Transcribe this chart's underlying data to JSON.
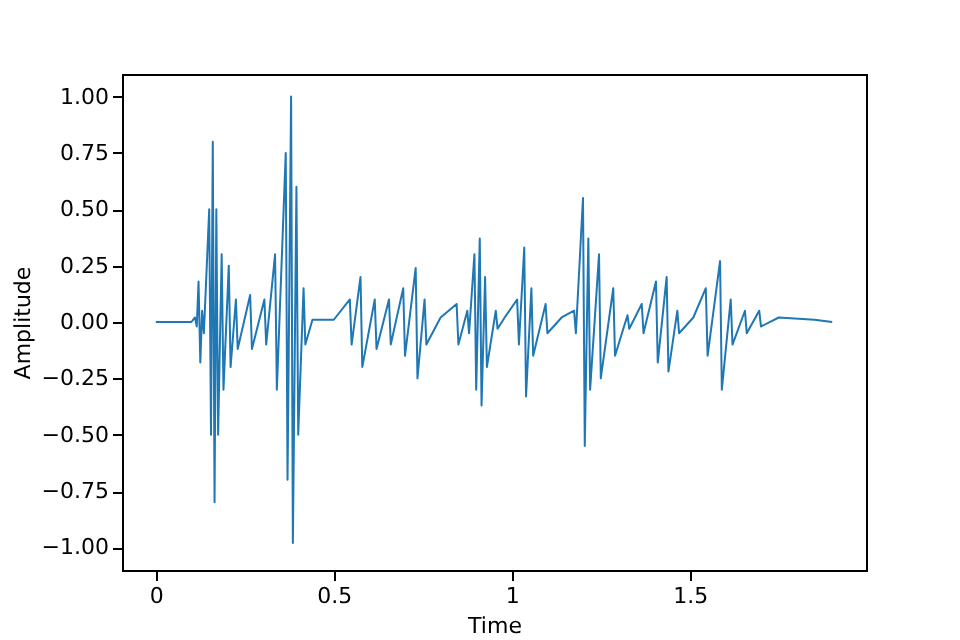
{
  "chart_data": {
    "type": "line",
    "xlabel": "Time",
    "ylabel": "Amplitude",
    "grid": false,
    "x": [
      0,
      0.1,
      0.11,
      0.115,
      0.12,
      0.125,
      0.13,
      0.135,
      0.15,
      0.155,
      0.16,
      0.165,
      0.17,
      0.175,
      0.185,
      0.19,
      0.205,
      0.21,
      0.225,
      0.23,
      0.265,
      0.27,
      0.305,
      0.31,
      0.335,
      0.34,
      0.365,
      0.37,
      0.38,
      0.385,
      0.395,
      0.4,
      0.415,
      0.42,
      0.44,
      0.5,
      0.545,
      0.55,
      0.575,
      0.58,
      0.615,
      0.62,
      0.655,
      0.66,
      0.695,
      0.7,
      0.73,
      0.735,
      0.755,
      0.76,
      0.8,
      0.845,
      0.85,
      0.875,
      0.88,
      0.895,
      0.9,
      0.91,
      0.915,
      0.925,
      0.93,
      0.955,
      0.96,
      0.98,
      1.015,
      1.02,
      1.035,
      1.04,
      1.055,
      1.06,
      1.095,
      1.1,
      1.14,
      1.175,
      1.18,
      1.2,
      1.205,
      1.215,
      1.22,
      1.245,
      1.25,
      1.285,
      1.29,
      1.325,
      1.33,
      1.365,
      1.37,
      1.405,
      1.41,
      1.435,
      1.44,
      1.465,
      1.47,
      1.51,
      1.545,
      1.55,
      1.585,
      1.59,
      1.615,
      1.62,
      1.655,
      1.66,
      1.695,
      1.7,
      1.75,
      1.85,
      1.9
    ],
    "series": [
      {
        "color": "#1f77b4",
        "values": [
          0,
          0,
          0.02,
          -0.02,
          0.18,
          -0.18,
          0.05,
          -0.05,
          0.5,
          -0.5,
          0.8,
          -0.8,
          0.5,
          -0.5,
          0.3,
          -0.3,
          0.25,
          -0.2,
          0.1,
          -0.12,
          0.12,
          -0.12,
          0.1,
          -0.1,
          0.3,
          -0.3,
          0.75,
          -0.7,
          1.0,
          -0.98,
          0.6,
          -0.5,
          0.15,
          -0.1,
          0.01,
          0.01,
          0.1,
          -0.1,
          0.2,
          -0.2,
          0.1,
          -0.12,
          0.1,
          -0.1,
          0.15,
          -0.15,
          0.24,
          -0.25,
          0.1,
          -0.1,
          0.02,
          0.08,
          -0.1,
          0.05,
          -0.05,
          0.3,
          -0.3,
          0.37,
          -0.37,
          0.2,
          -0.2,
          0.05,
          -0.03,
          0.02,
          0.1,
          -0.1,
          0.33,
          -0.33,
          0.15,
          -0.15,
          0.08,
          -0.05,
          0.02,
          0.05,
          -0.05,
          0.55,
          -0.55,
          0.37,
          -0.3,
          0.3,
          -0.25,
          0.15,
          -0.15,
          0.03,
          -0.03,
          0.08,
          -0.05,
          0.18,
          -0.18,
          0.2,
          -0.22,
          0.05,
          -0.05,
          0.02,
          0.15,
          -0.15,
          0.27,
          -0.3,
          0.1,
          -0.1,
          0.05,
          -0.05,
          0.05,
          -0.02,
          0.02,
          0.01,
          0
        ]
      }
    ],
    "xlim": [
      -0.095,
      1.995
    ],
    "xticks": [
      0,
      0.5,
      1,
      1.5
    ],
    "ylim": [
      -1.1,
      1.1
    ],
    "yticks": [
      {
        "value": -1,
        "label": "−1.00"
      },
      {
        "value": -0.75,
        "label": "−0.75"
      },
      {
        "value": -0.5,
        "label": "−0.50"
      },
      {
        "value": -0.25,
        "label": "−0.25"
      },
      {
        "value": 0,
        "label": "0.00"
      },
      {
        "value": 0.25,
        "label": "0.25"
      },
      {
        "value": 0.5,
        "label": "0.50"
      },
      {
        "value": 0.75,
        "label": "0.75"
      },
      {
        "value": 1,
        "label": "1.00"
      }
    ]
  }
}
